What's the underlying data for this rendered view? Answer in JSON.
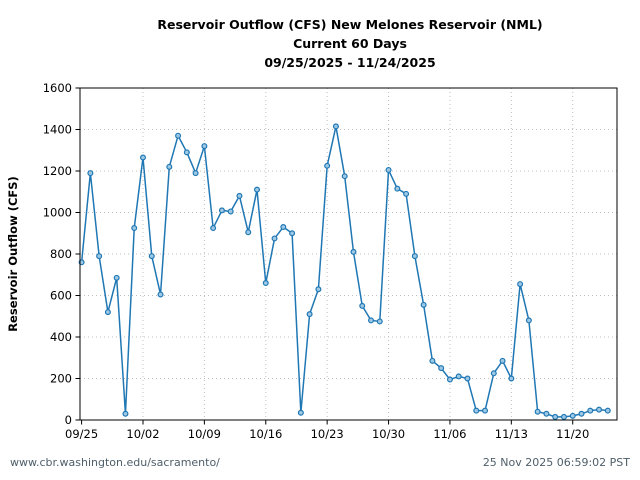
{
  "title": {
    "line1": "Reservoir Outflow (CFS) New Melones Reservoir (NML)",
    "line2": "Current 60 Days",
    "line3": "09/25/2025 - 11/24/2025"
  },
  "footer": {
    "url": "www.cbr.washington.edu/sacramento/",
    "timestamp": "25 Nov 2025 06:59:02 PST"
  },
  "colors": {
    "line": "#1f77b4",
    "marker_fill": "#9ec9e4",
    "grid": "#bfbfbf",
    "axis": "#000000",
    "text": "#000000",
    "footer_text": "#4e5f6a"
  },
  "chart_data": {
    "type": "line",
    "title": "Reservoir Outflow (CFS) New Melones Reservoir (NML)",
    "subtitle": "Current 60 Days",
    "date_range": "09/25/2025 - 11/24/2025",
    "xlabel": "",
    "ylabel": "Reservoir Outflow (CFS)",
    "ylim": [
      0,
      1600
    ],
    "ytick_interval": 200,
    "yticks": [
      0,
      200,
      400,
      600,
      800,
      1000,
      1200,
      1400,
      1600
    ],
    "xtick_labels": [
      "09/25",
      "10/02",
      "10/09",
      "10/16",
      "10/23",
      "10/30",
      "11/06",
      "11/13",
      "11/20"
    ],
    "xtick_indices": [
      0,
      7,
      14,
      21,
      28,
      35,
      42,
      49,
      56
    ],
    "grid": true,
    "legend_position": "none",
    "series_name": "Reservoir Outflow (CFS)",
    "x": [
      "09/25",
      "09/26",
      "09/27",
      "09/28",
      "09/29",
      "09/30",
      "10/01",
      "10/02",
      "10/03",
      "10/04",
      "10/05",
      "10/06",
      "10/07",
      "10/08",
      "10/09",
      "10/10",
      "10/11",
      "10/12",
      "10/13",
      "10/14",
      "10/15",
      "10/16",
      "10/17",
      "10/18",
      "10/19",
      "10/20",
      "10/21",
      "10/22",
      "10/23",
      "10/24",
      "10/25",
      "10/26",
      "10/27",
      "10/28",
      "10/29",
      "10/30",
      "10/31",
      "11/01",
      "11/02",
      "11/03",
      "11/04",
      "11/05",
      "11/06",
      "11/07",
      "11/08",
      "11/09",
      "11/10",
      "11/11",
      "11/12",
      "11/13",
      "11/14",
      "11/15",
      "11/16",
      "11/17",
      "11/18",
      "11/19",
      "11/20",
      "11/21",
      "11/22",
      "11/23",
      "11/24"
    ],
    "y": [
      760,
      1190,
      790,
      520,
      685,
      30,
      925,
      1265,
      790,
      605,
      1220,
      1370,
      1290,
      1190,
      1320,
      925,
      1010,
      1005,
      1080,
      905,
      1110,
      660,
      875,
      930,
      900,
      35,
      510,
      630,
      1225,
      1415,
      1175,
      810,
      550,
      480,
      475,
      1205,
      1115,
      1090,
      790,
      555,
      285,
      250,
      195,
      210,
      200,
      45,
      45,
      225,
      285,
      200,
      655,
      480,
      40,
      30,
      15,
      15,
      20,
      30,
      45,
      50,
      45
    ]
  }
}
